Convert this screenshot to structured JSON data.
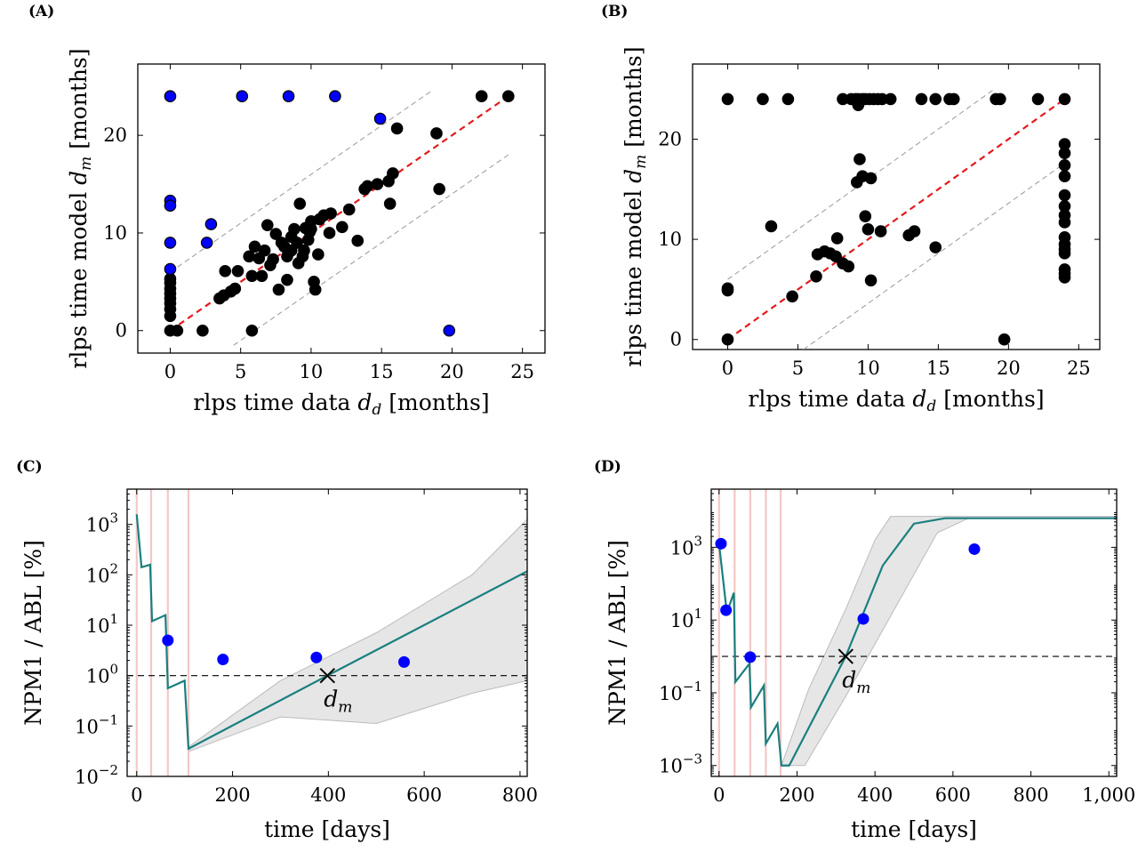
{
  "colors": {
    "black_marker": "#000000",
    "blue_marker": "#0000ff",
    "identity_line": "#e41a1c",
    "band_line": "#999999",
    "model_line": "#1a7f7f",
    "ci_band": "#e6e6e6",
    "treatment_line": "#f4c7c7",
    "threshold_line": "#000000"
  },
  "chart_data": [
    {
      "panel": "(A)",
      "type": "scatter",
      "xlabel_main": "rlps time data ",
      "xlabel_var": "d",
      "xlabel_sub": "d",
      "xlabel_unit": " [months]",
      "ylabel_main": "rlps time model ",
      "ylabel_var": "d",
      "ylabel_sub": "m",
      "ylabel_unit": " [months]",
      "xlim": [
        -2.3,
        26.6
      ],
      "ylim": [
        -2.3,
        27.3
      ],
      "xticks": [
        0,
        5,
        10,
        15,
        20,
        25
      ],
      "yticks": [
        0,
        10,
        20
      ],
      "identity_line": [
        [
          0,
          0
        ],
        [
          24,
          24
        ]
      ],
      "band_lines": [
        [
          [
            0,
            6
          ],
          [
            18.6,
            24.6
          ]
        ],
        [
          [
            4.5,
            -1.5
          ],
          [
            24,
            18
          ]
        ]
      ],
      "series": [
        {
          "marker": "black",
          "points": [
            [
              0,
              0
            ],
            [
              0,
              1.5
            ],
            [
              0,
              2.2
            ],
            [
              0,
              2.8
            ],
            [
              0,
              3.3
            ],
            [
              0,
              3.8
            ],
            [
              0,
              4.3
            ],
            [
              0,
              4.9
            ],
            [
              0,
              5.3
            ],
            [
              0.5,
              0
            ],
            [
              2.3,
              0
            ],
            [
              5.8,
              0
            ],
            [
              3.5,
              3.3
            ],
            [
              3.8,
              3.6
            ],
            [
              3.9,
              6.1
            ],
            [
              4.3,
              4
            ],
            [
              4.6,
              4.3
            ],
            [
              4.8,
              6.1
            ],
            [
              5.6,
              7.6
            ],
            [
              5.8,
              5.6
            ],
            [
              6,
              8.6
            ],
            [
              6.3,
              7.4
            ],
            [
              6.7,
              8.2
            ],
            [
              6.9,
              10.8
            ],
            [
              6.5,
              5.6
            ],
            [
              7.1,
              6.7
            ],
            [
              7.3,
              7.3
            ],
            [
              7.5,
              9.9
            ],
            [
              7.9,
              9
            ],
            [
              8.1,
              8.6
            ],
            [
              8.3,
              7.6
            ],
            [
              8.3,
              5.2
            ],
            [
              7.7,
              4.2
            ],
            [
              8.6,
              8.2
            ],
            [
              8.6,
              9.6
            ],
            [
              8.8,
              10.4
            ],
            [
              9,
              9
            ],
            [
              9.1,
              6.9
            ],
            [
              9.2,
              13
            ],
            [
              9.4,
              7.6
            ],
            [
              9.6,
              10.5
            ],
            [
              9.8,
              9.3
            ],
            [
              9.9,
              10.1
            ],
            [
              9.5,
              8.2
            ],
            [
              10,
              10.4
            ],
            [
              10,
              11.2
            ],
            [
              10.2,
              5
            ],
            [
              10.3,
              4.2
            ],
            [
              10.5,
              7.8
            ],
            [
              10.6,
              11.4
            ],
            [
              10.9,
              11.8
            ],
            [
              11.3,
              10
            ],
            [
              11.4,
              12
            ],
            [
              12.2,
              10.6
            ],
            [
              12.7,
              12.4
            ],
            [
              13.3,
              9.2
            ],
            [
              13.8,
              14.5
            ],
            [
              14,
              14.8
            ],
            [
              14.7,
              15
            ],
            [
              15.5,
              15.3
            ],
            [
              15.6,
              13
            ],
            [
              15.8,
              16.1
            ],
            [
              16.1,
              20.7
            ],
            [
              18.9,
              20.2
            ],
            [
              19.1,
              14.5
            ],
            [
              22.1,
              24
            ],
            [
              24,
              24
            ]
          ]
        },
        {
          "marker": "blue",
          "points": [
            [
              0,
              24
            ],
            [
              5.1,
              24
            ],
            [
              8.4,
              24
            ],
            [
              11.7,
              24
            ],
            [
              14.9,
              21.7
            ],
            [
              0,
              13.3
            ],
            [
              0,
              12.8
            ],
            [
              2.9,
              10.9
            ],
            [
              2.6,
              9.0
            ],
            [
              0,
              9.0
            ],
            [
              0,
              6.3
            ],
            [
              19.8,
              0
            ]
          ]
        }
      ]
    },
    {
      "panel": "(B)",
      "type": "scatter",
      "xlabel_main": "rlps time data ",
      "xlabel_var": "d",
      "xlabel_sub": "d",
      "xlabel_unit": " [months]",
      "ylabel_main": "rlps time model ",
      "ylabel_var": "d",
      "ylabel_sub": "m",
      "ylabel_unit": " [months]",
      "xlim": [
        -2.5,
        26.5
      ],
      "ylim": [
        -1,
        27.5
      ],
      "xticks": [
        0,
        5,
        10,
        15,
        20,
        25
      ],
      "yticks": [
        0,
        10,
        20
      ],
      "identity_line": [
        [
          0,
          0
        ],
        [
          24,
          24
        ]
      ],
      "band_lines": [
        [
          [
            0,
            6
          ],
          [
            19,
            25
          ]
        ],
        [
          [
            5.4,
            -1
          ],
          [
            24,
            17.6
          ]
        ]
      ],
      "series": [
        {
          "marker": "black",
          "points": [
            [
              0,
              24
            ],
            [
              2.5,
              24
            ],
            [
              4.3,
              24
            ],
            [
              8.2,
              24
            ],
            [
              8.8,
              24
            ],
            [
              9.1,
              24
            ],
            [
              9.3,
              24
            ],
            [
              9.6,
              24
            ],
            [
              9.8,
              24
            ],
            [
              10.1,
              24
            ],
            [
              10.4,
              24
            ],
            [
              10.7,
              24
            ],
            [
              11,
              24
            ],
            [
              11.6,
              24
            ],
            [
              13.8,
              24
            ],
            [
              14.8,
              24
            ],
            [
              15.8,
              24
            ],
            [
              16.1,
              24
            ],
            [
              19.1,
              24
            ],
            [
              19.4,
              24
            ],
            [
              22.1,
              24
            ],
            [
              24,
              24
            ],
            [
              9.3,
              23.4
            ],
            [
              0,
              5.1
            ],
            [
              0,
              4.9
            ],
            [
              0,
              0
            ],
            [
              3.1,
              11.3
            ],
            [
              4.6,
              4.3
            ],
            [
              6.3,
              6.3
            ],
            [
              6.4,
              8.5
            ],
            [
              6.9,
              8.8
            ],
            [
              7.3,
              8.6
            ],
            [
              7.7,
              8.3
            ],
            [
              7.8,
              10.1
            ],
            [
              8.2,
              7.6
            ],
            [
              8.6,
              7.3
            ],
            [
              9.2,
              15.7
            ],
            [
              9.4,
              18
            ],
            [
              9.6,
              16.3
            ],
            [
              9.8,
              12.3
            ],
            [
              10,
              11
            ],
            [
              10.2,
              16.1
            ],
            [
              10.2,
              5.9
            ],
            [
              10.9,
              10.8
            ],
            [
              12.9,
              10.4
            ],
            [
              13.3,
              10.8
            ],
            [
              14.8,
              9.2
            ],
            [
              19.7,
              0
            ],
            [
              24,
              19.5
            ],
            [
              24,
              18.6
            ],
            [
              24,
              17.4
            ],
            [
              24,
              16.3
            ],
            [
              24,
              14.4
            ],
            [
              24,
              13.3
            ],
            [
              24,
              12.4
            ],
            [
              24,
              11.7
            ],
            [
              24,
              10.2
            ],
            [
              24,
              9.5
            ],
            [
              24,
              9.0
            ],
            [
              24,
              8.6
            ],
            [
              24,
              7.0
            ],
            [
              24,
              6.6
            ],
            [
              24,
              6.2
            ]
          ]
        }
      ]
    },
    {
      "panel": "(C)",
      "type": "line",
      "yscale": "log",
      "xlabel": "time [days]",
      "ylabel": "NPM1 / ABL [%]",
      "annotation_var": "d",
      "annotation_sub": "m",
      "xlim": [
        -20,
        815
      ],
      "ylim_log10": [
        -2,
        3.7
      ],
      "xticks": [
        0,
        200,
        400,
        600,
        800
      ],
      "yticks_log10": [
        -2,
        -1,
        0,
        1,
        2,
        3
      ],
      "ytick_base": "10",
      "ytick_exponents": [
        "−2",
        "−1",
        "0",
        "1",
        "2",
        "3"
      ],
      "treatment_lines_x": [
        0,
        30,
        65,
        108
      ],
      "threshold": 1,
      "crossing": [
        398,
        0
      ],
      "model": [
        [
          0,
          3.2
        ],
        [
          10,
          2.15
        ],
        [
          28,
          2.2
        ],
        [
          32,
          1.08
        ],
        [
          60,
          1.2
        ],
        [
          65,
          -0.25
        ],
        [
          100,
          -0.1
        ],
        [
          108,
          -1.45
        ],
        [
          398,
          0
        ],
        [
          815,
          2.07
        ]
      ],
      "band_upper": [
        [
          110,
          -1.4
        ],
        [
          300,
          -0.1
        ],
        [
          500,
          0.85
        ],
        [
          700,
          2.0
        ],
        [
          815,
          3.1
        ]
      ],
      "band_lower": [
        [
          110,
          -1.5
        ],
        [
          300,
          -0.82
        ],
        [
          500,
          -0.95
        ],
        [
          700,
          -0.35
        ],
        [
          815,
          -0.1
        ]
      ],
      "data_points": [
        [
          65,
          0.7
        ],
        [
          180,
          0.32
        ],
        [
          375,
          0.36
        ],
        [
          558,
          0.27
        ]
      ]
    },
    {
      "panel": "(D)",
      "type": "line",
      "yscale": "log",
      "xlabel": "time [days]",
      "ylabel": "NPM1 / ABL [%]",
      "annotation_var": "d",
      "annotation_sub": "m",
      "xlim": [
        -20,
        1020
      ],
      "ylim_log10": [
        -3.3,
        4.6
      ],
      "xticks": [
        0,
        200,
        400,
        600,
        800,
        1000
      ],
      "xtick_labels": [
        "0",
        "200",
        "400",
        "600",
        "800",
        "1,000"
      ],
      "yticks_log10": [
        -3,
        -1,
        1,
        3
      ],
      "ytick_base": "10",
      "ytick_exponents": [
        "−3",
        "−1",
        "1",
        "3"
      ],
      "treatment_lines_x": [
        0,
        40,
        80,
        120,
        158
      ],
      "threshold_log10": 0,
      "crossing": [
        325,
        0
      ],
      "model": [
        [
          0,
          3.1
        ],
        [
          20,
          1.2
        ],
        [
          38,
          1.75
        ],
        [
          42,
          -0.7
        ],
        [
          78,
          -0.2
        ],
        [
          82,
          -1.4
        ],
        [
          115,
          -0.8
        ],
        [
          120,
          -2.4
        ],
        [
          150,
          -1.85
        ],
        [
          160,
          -3
        ],
        [
          180,
          -3
        ],
        [
          325,
          0
        ],
        [
          420,
          2.5
        ],
        [
          500,
          3.65
        ],
        [
          580,
          3.8
        ],
        [
          1020,
          3.8
        ]
      ],
      "band_upper": [
        [
          160,
          -3
        ],
        [
          230,
          -0.9
        ],
        [
          325,
          1.3
        ],
        [
          400,
          3.2
        ],
        [
          440,
          3.85
        ],
        [
          1020,
          3.85
        ]
      ],
      "band_lower": [
        [
          160,
          -3
        ],
        [
          220,
          -3
        ],
        [
          325,
          -1.1
        ],
        [
          450,
          1.3
        ],
        [
          560,
          3.4
        ],
        [
          640,
          3.8
        ],
        [
          1020,
          3.8
        ]
      ],
      "data_points": [
        [
          5,
          3.1
        ],
        [
          18,
          1.27
        ],
        [
          80,
          -0.02
        ],
        [
          370,
          1.03
        ],
        [
          655,
          2.95
        ]
      ]
    }
  ]
}
